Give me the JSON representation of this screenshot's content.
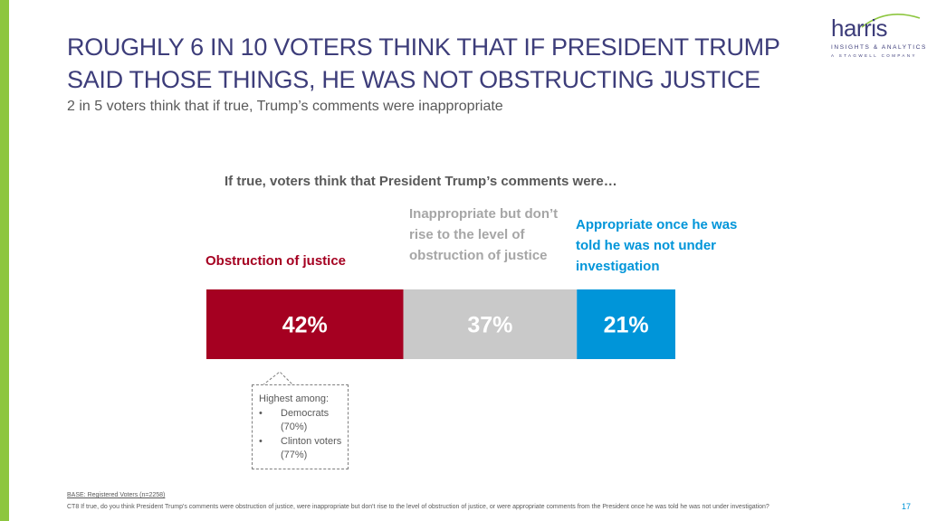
{
  "slide": {
    "title_line1": "ROUGHLY 6 IN 10 VOTERS THINK THAT IF PRESIDENT TRUMP",
    "title_line2": "SAID THOSE THINGS, HE WAS NOT OBSTRUCTING JUSTICE",
    "subtitle": "2 in 5 voters think that if true, Trump’s comments were inappropriate",
    "base_note": "BASE: Registered Voters (n=2258)",
    "question_note": "CT8 If true, do you think President Trump's comments were obstruction of justice, were inappropriate but don't rise to the level of obstruction of justice, or were appropriate comments from the President once he was told he was not under investigation?",
    "page_number": "17",
    "accent_color": "#8dc63f"
  },
  "logo": {
    "word": "harris",
    "line1": "INSIGHTS & ANALYTICS",
    "line2": "A STAGWELL COMPANY"
  },
  "callout": {
    "heading": "Highest among:",
    "items": [
      "Democrats (70%)",
      "Clinton voters (77%)"
    ]
  },
  "chart_data": {
    "type": "bar",
    "orientation": "horizontal-stacked",
    "title": "If true, voters think that President Trump’s comments were…",
    "categories": [
      "Obstruction of justice",
      "Inappropriate but don’t rise to the level of obstruction of justice",
      "Appropriate once he was told he was not under investigation"
    ],
    "values": [
      42,
      37,
      21
    ],
    "value_labels": [
      "42%",
      "37%",
      "21%"
    ],
    "colors": [
      "#a50021",
      "#c9c9c9",
      "#0095d9"
    ],
    "label_colors": [
      "#ffffff",
      "#ffffff",
      "#ffffff"
    ],
    "xlim": [
      0,
      100
    ],
    "grid": false,
    "legend": "labels above segments"
  }
}
